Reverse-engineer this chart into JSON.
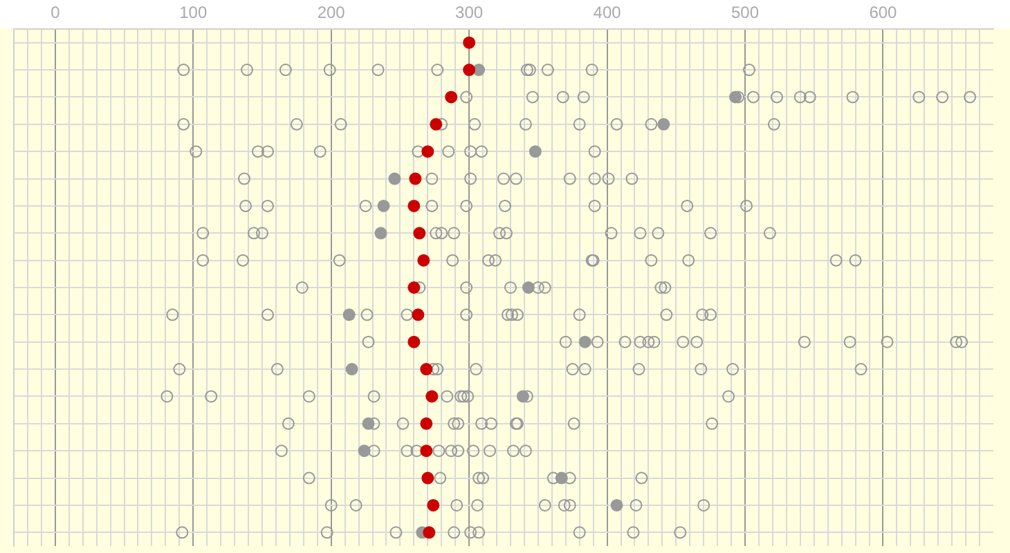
{
  "chart_data": {
    "type": "scatter",
    "orientation": "horizontal",
    "tick_labels": "x",
    "grid": true,
    "legend": false,
    "marker": "circle",
    "categories": [
      null,
      null,
      null,
      null,
      null,
      null,
      null,
      null,
      null,
      null,
      null,
      null,
      null,
      null,
      null,
      null,
      null,
      null,
      null
    ],
    "xlim": [
      -30,
      680
    ],
    "xticks": [
      {
        "value": -20,
        "label": null
      },
      {
        "value": -10,
        "label": null
      },
      0,
      {
        "value": 10,
        "label": null
      },
      {
        "value": 20,
        "label": null
      },
      {
        "value": 30,
        "label": null
      },
      {
        "value": 40,
        "label": null
      },
      {
        "value": 50,
        "label": null
      },
      {
        "value": 60,
        "label": null
      },
      {
        "value": 70,
        "label": null
      },
      {
        "value": 80,
        "label": null
      },
      {
        "value": 90,
        "label": null
      },
      100,
      {
        "value": 110,
        "label": null
      },
      {
        "value": 120,
        "label": null
      },
      {
        "value": 130,
        "label": null
      },
      {
        "value": 140,
        "label": null
      },
      {
        "value": 150,
        "label": null
      },
      {
        "value": 160,
        "label": null
      },
      {
        "value": 170,
        "label": null
      },
      {
        "value": 180,
        "label": null
      },
      {
        "value": 190,
        "label": null
      },
      200,
      {
        "value": 210,
        "label": null
      },
      {
        "value": 220,
        "label": null
      },
      {
        "value": 230,
        "label": null
      },
      {
        "value": 240,
        "label": null
      },
      {
        "value": 250,
        "label": null
      },
      {
        "value": 260,
        "label": null
      },
      {
        "value": 270,
        "label": null
      },
      {
        "value": 280,
        "label": null
      },
      {
        "value": 290,
        "label": null
      },
      300,
      {
        "value": 310,
        "label": null
      },
      {
        "value": 320,
        "label": null
      },
      {
        "value": 330,
        "label": null
      },
      {
        "value": 340,
        "label": null
      },
      {
        "value": 350,
        "label": null
      },
      {
        "value": 360,
        "label": null
      },
      {
        "value": 370,
        "label": null
      },
      {
        "value": 380,
        "label": null
      },
      {
        "value": 390,
        "label": null
      },
      400,
      {
        "value": 410,
        "label": null
      },
      {
        "value": 420,
        "label": null
      },
      {
        "value": 430,
        "label": null
      },
      {
        "value": 440,
        "label": null
      },
      {
        "value": 450,
        "label": null
      },
      {
        "value": 460,
        "label": null
      },
      {
        "value": 470,
        "label": null
      },
      {
        "value": 480,
        "label": null
      },
      {
        "value": 490,
        "label": null
      },
      500,
      {
        "value": 510,
        "label": null
      },
      {
        "value": 520,
        "label": null
      },
      {
        "value": 530,
        "label": null
      },
      {
        "value": 540,
        "label": null
      },
      {
        "value": 550,
        "label": null
      },
      {
        "value": 560,
        "label": null
      },
      {
        "value": 570,
        "label": null
      },
      {
        "value": 580,
        "label": null
      },
      {
        "value": 590,
        "label": null
      },
      600,
      {
        "value": 610,
        "label": null
      },
      {
        "value": 620,
        "label": null
      },
      {
        "value": 630,
        "label": null
      },
      {
        "value": 640,
        "label": null
      },
      {
        "value": 650,
        "label": null
      },
      {
        "value": 660,
        "label": null
      },
      {
        "value": 670,
        "label": null
      }
    ],
    "series": [
      {
        "color": "#cc0000",
        "values": [
          300,
          300,
          287,
          276,
          270,
          261,
          260,
          264,
          267,
          260,
          263,
          260,
          269,
          273,
          269,
          269,
          270,
          274,
          271
        ]
      },
      {
        "color": "#999999",
        "values": [
          null,
          307,
          493,
          441,
          348,
          246,
          238,
          236,
          null,
          343,
          213,
          384,
          215,
          339,
          227,
          224,
          367,
          407,
          266
        ]
      },
      {
        "color": "#999999",
        "values": [
          null,
          93,
          298,
          93,
          102,
          137,
          138,
          107,
          107,
          179,
          85,
          227,
          90,
          81,
          169,
          164,
          184,
          200,
          92
        ]
      },
      {
        "color": "#999999",
        "values": [
          null,
          139,
          346,
          175,
          147,
          273,
          154,
          144,
          136,
          264,
          154,
          370,
          161,
          113,
          231,
          231,
          279,
          218,
          197
        ]
      },
      {
        "color": "#999999",
        "values": [
          null,
          167,
          368,
          207,
          154,
          301,
          225,
          150,
          206,
          298,
          226,
          393,
          274,
          184,
          252,
          255,
          307,
          291,
          247
        ]
      },
      {
        "color": "#999999",
        "values": [
          null,
          199,
          383,
          280,
          192,
          325,
          273,
          276,
          288,
          330,
          255,
          413,
          277,
          231,
          289,
          262,
          310,
          306,
          289
        ]
      },
      {
        "color": "#999999",
        "values": [
          null,
          234,
          495,
          304,
          263,
          334,
          298,
          280,
          314,
          350,
          298,
          424,
          305,
          284,
          292,
          278,
          361,
          355,
          301
        ]
      },
      {
        "color": "#999999",
        "values": [
          null,
          277,
          506,
          341,
          285,
          373,
          326,
          289,
          319,
          355,
          328,
          430,
          375,
          294,
          309,
          287,
          373,
          369,
          307
        ]
      },
      {
        "color": "#999999",
        "values": [
          null,
          342,
          523,
          380,
          301,
          391,
          391,
          322,
          389,
          439,
          331,
          434,
          384,
          296,
          316,
          292,
          425,
          373,
          380
        ]
      },
      {
        "color": "#999999",
        "values": [
          null,
          344,
          540,
          407,
          309,
          401,
          458,
          327,
          390,
          442,
          335,
          455,
          423,
          299,
          334,
          303,
          null,
          421,
          419
        ]
      },
      {
        "color": "#999999",
        "values": [
          null,
          357,
          547,
          432,
          391,
          418,
          501,
          403,
          432,
          null,
          380,
          465,
          468,
          342,
          335,
          315,
          null,
          470,
          453
        ]
      },
      {
        "color": "#999999",
        "values": [
          null,
          389,
          578,
          521,
          null,
          null,
          null,
          424,
          459,
          null,
          443,
          543,
          491,
          488,
          376,
          332,
          null,
          null,
          null
        ]
      },
      {
        "color": "#999999",
        "values": [
          null,
          503,
          626,
          null,
          null,
          null,
          null,
          437,
          566,
          null,
          469,
          576,
          584,
          null,
          476,
          341,
          null,
          null,
          null
        ]
      },
      {
        "color": "#999999",
        "values": [
          null,
          null,
          643,
          null,
          null,
          null,
          null,
          475,
          580,
          null,
          475,
          603,
          null,
          null,
          null,
          null,
          null,
          null,
          null
        ]
      },
      {
        "color": "#999999",
        "values": [
          null,
          null,
          663,
          null,
          null,
          null,
          null,
          518,
          null,
          null,
          null,
          653,
          null,
          null,
          null,
          null,
          null,
          null,
          null
        ]
      },
      {
        "color": "#999999",
        "values": [
          null,
          null,
          null,
          null,
          null,
          null,
          null,
          null,
          null,
          null,
          null,
          657,
          null,
          null,
          null,
          null,
          null,
          null,
          null
        ]
      }
    ]
  }
}
